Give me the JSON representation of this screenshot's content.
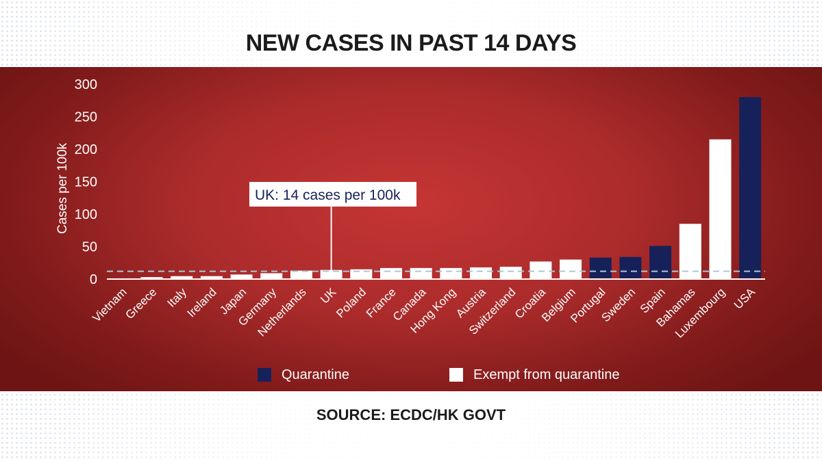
{
  "title": "NEW CASES IN PAST 14 DAYS",
  "source": "SOURCE: ECDC/HK GOVT",
  "colors": {
    "panel": "#ab2b2b",
    "quarantine": "#16215a",
    "exempt": "#ffffff",
    "reference_line": "#a9c9d8"
  },
  "chart_data": {
    "type": "bar",
    "title": "NEW CASES IN PAST 14 DAYS",
    "ylabel": "Cases per 100k",
    "xlabel": "",
    "ylim": [
      0,
      300
    ],
    "yticks": [
      0,
      50,
      100,
      150,
      200,
      250,
      300
    ],
    "grid": false,
    "legend_position": "bottom",
    "categories": [
      "Vietnam",
      "Greece",
      "Italy",
      "Ireland",
      "Japan",
      "Germany",
      "Netherlands",
      "UK",
      "Poland",
      "France",
      "Canada",
      "Hong Kong",
      "Austria",
      "Switzerland",
      "Croatia",
      "Belgium",
      "Portugal",
      "Sweden",
      "Spain",
      "Bahamas",
      "Luxembourg",
      "USA"
    ],
    "values": [
      0.5,
      3,
      4.5,
      4.5,
      7,
      9,
      13,
      14,
      15,
      17,
      17,
      17,
      18,
      19,
      27,
      30,
      33,
      34,
      51,
      85,
      215,
      280
    ],
    "groups": [
      "exempt",
      "exempt",
      "exempt",
      "exempt",
      "exempt",
      "exempt",
      "exempt",
      "exempt",
      "exempt",
      "exempt",
      "exempt",
      "exempt",
      "exempt",
      "exempt",
      "exempt",
      "exempt",
      "quarantine",
      "quarantine",
      "quarantine",
      "exempt",
      "exempt",
      "quarantine"
    ],
    "legend": [
      {
        "key": "quarantine",
        "label": "Quarantine"
      },
      {
        "key": "exempt",
        "label": "Exempt from quarantine"
      }
    ],
    "reference_line": {
      "value": 12,
      "style": "dashed"
    },
    "annotation": {
      "text": "UK: 14 cases per 100k",
      "target": "UK"
    }
  }
}
